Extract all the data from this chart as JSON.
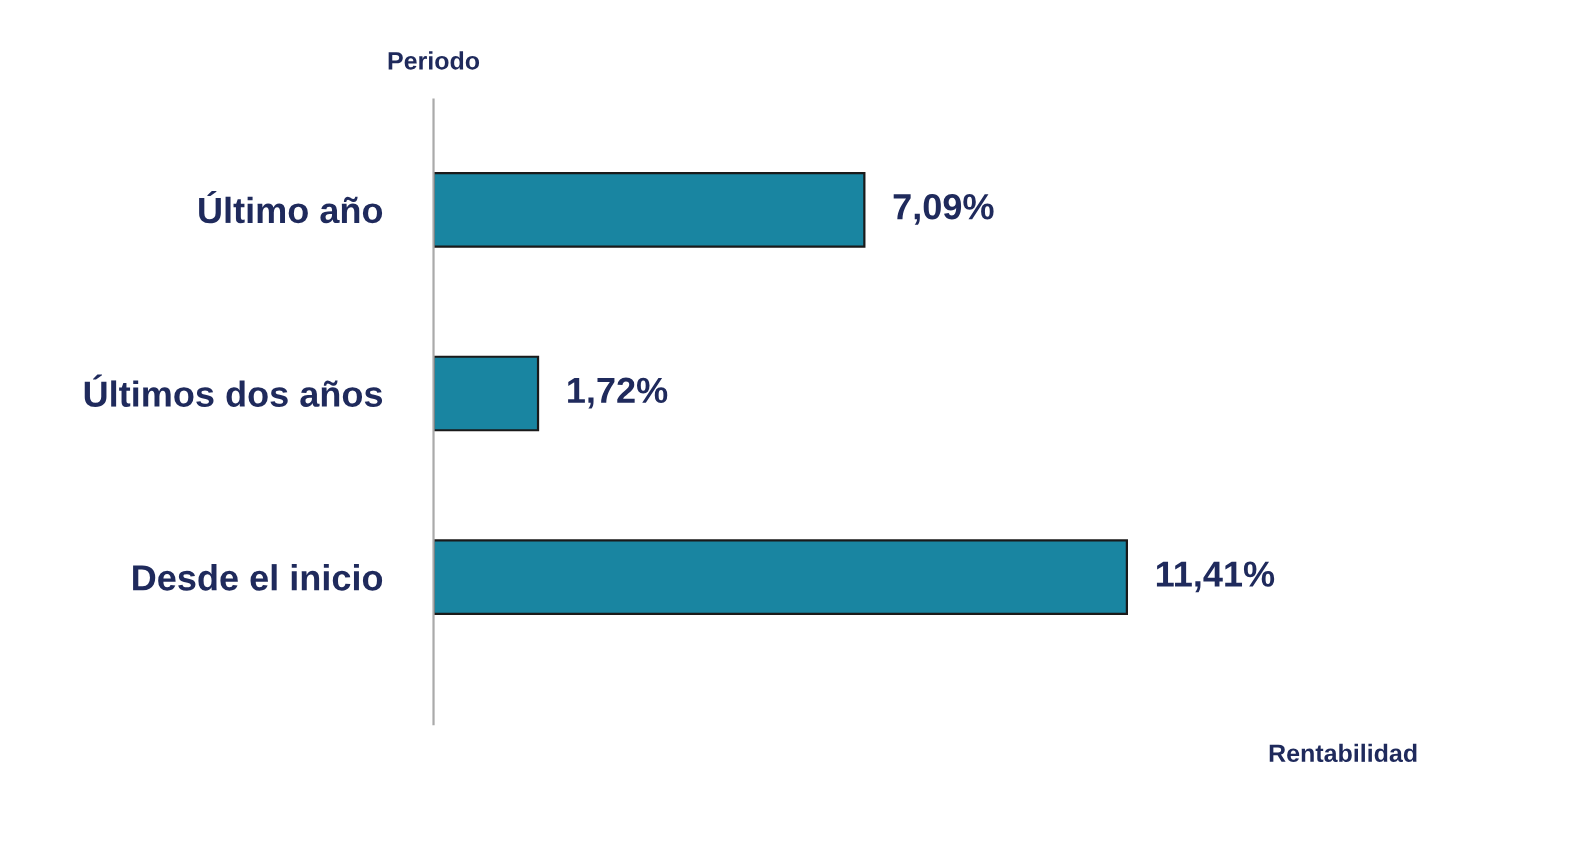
{
  "chart_data": {
    "type": "bar",
    "orientation": "horizontal",
    "categories": [
      "Último año",
      "Últimos dos años",
      "Desde el inicio"
    ],
    "values": [
      7.09,
      1.72,
      11.41
    ],
    "value_labels": [
      "7,09%",
      "1,72%",
      "11,41%"
    ],
    "color": "#1985a1",
    "annotations": [
      "Rentabilidad"
    ],
    "ylabel": "Periodo",
    "grid": false,
    "legend": false
  }
}
